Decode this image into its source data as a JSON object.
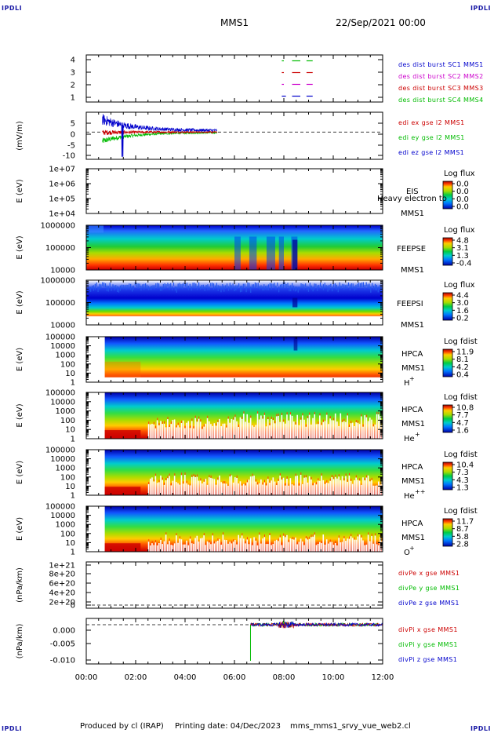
{
  "header": {
    "corner_label": "IPDLI",
    "title": "MMS1",
    "date": "22/Sep/2021 00:00"
  },
  "footer": {
    "produced_by": "Produced by cl (IRAP)",
    "printing_date": "Printing date: 04/Dec/2023",
    "filename": "mms_mms1_srvy_vue_web2.cl"
  },
  "colors": {
    "mms1": "#0000cc",
    "mms2": "#cc00cc",
    "mms3": "#cc0000",
    "mms4": "#00bb00"
  },
  "chart_data": {
    "type": "line",
    "x_ticks": [
      "00:00",
      "02:00",
      "04:00",
      "06:00",
      "08:00",
      "10:00",
      "12:00"
    ],
    "panels": [
      {
        "id": "burst",
        "type": "scatter",
        "y_ticks": [
          "4",
          "3",
          "2",
          "1"
        ],
        "ylim": [
          0.5,
          4.5
        ],
        "series": [
          {
            "name": "des dist burst SC1 MMS1",
            "color": "#0000cc",
            "y": 1,
            "segments": [
              [
                "07:55",
                "08:05"
              ],
              [
                "08:20",
                "08:40"
              ],
              [
                "08:55",
                "09:10"
              ]
            ]
          },
          {
            "name": "des dist burst SC2 MMS2",
            "color": "#cc00cc",
            "y": 2,
            "segments": [
              [
                "07:55",
                "08:00"
              ],
              [
                "08:20",
                "08:40"
              ],
              [
                "08:55",
                "09:10"
              ]
            ]
          },
          {
            "name": "des dist burst SC3 MMS3",
            "color": "#cc0000",
            "y": 3,
            "segments": [
              [
                "07:55",
                "08:00"
              ],
              [
                "08:20",
                "08:40"
              ],
              [
                "08:55",
                "09:10"
              ]
            ]
          },
          {
            "name": "des dist burst SC4 MMS4",
            "color": "#00bb00",
            "y": 4,
            "segments": [
              [
                "07:55",
                "08:00"
              ],
              [
                "08:20",
                "08:40"
              ],
              [
                "08:55",
                "09:10"
              ]
            ]
          }
        ]
      },
      {
        "id": "edi",
        "type": "line",
        "ylabel": "(mV/m)",
        "y_ticks": [
          "5",
          "0",
          "-5",
          "-10"
        ],
        "ylim": [
          -11,
          8
        ],
        "series": [
          {
            "name": "edi ex gse l2 MMS1",
            "color": "#cc0000"
          },
          {
            "name": "edi ey gse l2 MMS1",
            "color": "#00bb00"
          },
          {
            "name": "edi ez gse l2 MMS1",
            "color": "#0000cc"
          }
        ]
      },
      {
        "id": "eis",
        "type": "heatmap",
        "ylabel": "E (eV)",
        "y_ticks": [
          "1e+07",
          "1e+06",
          "1e+05",
          "1e+04"
        ],
        "instrument": "EIS",
        "spacecraft": "MMS1",
        "overlay_text": "Heavy electron to",
        "colorbar_title": "Log flux",
        "colorbar_ticks": [
          "0.0",
          "0.0",
          "0.0",
          "0.0"
        ]
      },
      {
        "id": "feepse",
        "type": "heatmap",
        "ylabel": "E (eV)",
        "y_ticks": [
          "1000000",
          "100000",
          "10000"
        ],
        "instrument": "FEEPSE",
        "spacecraft": "MMS1",
        "colorbar_title": "Log flux",
        "colorbar_ticks": [
          "4.8",
          "3.1",
          "1.3",
          "-0.4"
        ]
      },
      {
        "id": "feepsi",
        "type": "heatmap",
        "ylabel": "E (eV)",
        "y_ticks": [
          "1000000",
          "100000",
          "10000"
        ],
        "instrument": "FEEPSI",
        "spacecraft": "MMS1",
        "colorbar_title": "Log flux",
        "colorbar_ticks": [
          "4.4",
          "3.0",
          "1.6",
          "0.2"
        ]
      },
      {
        "id": "hpca_h",
        "type": "heatmap",
        "ylabel": "E (eV)",
        "y_ticks": [
          "100000",
          "10000",
          "1000",
          "100",
          "10",
          "1"
        ],
        "instrument": "HPCA",
        "spacecraft": "MMS1",
        "species": "H",
        "species_sup": "+",
        "colorbar_title": "Log fdist",
        "colorbar_ticks": [
          "11.9",
          "8.1",
          "4.2",
          "0.4"
        ]
      },
      {
        "id": "hpca_he",
        "type": "heatmap",
        "ylabel": "E (eV)",
        "y_ticks": [
          "100000",
          "10000",
          "1000",
          "100",
          "10",
          "1"
        ],
        "instrument": "HPCA",
        "spacecraft": "MMS1",
        "species": "He",
        "species_sup": "+",
        "colorbar_title": "Log fdist",
        "colorbar_ticks": [
          "10.8",
          "7.7",
          "4.7",
          "1.6"
        ]
      },
      {
        "id": "hpca_hepp",
        "type": "heatmap",
        "ylabel": "E (eV)",
        "y_ticks": [
          "100000",
          "10000",
          "1000",
          "100",
          "10",
          "1"
        ],
        "instrument": "HPCA",
        "spacecraft": "MMS1",
        "species": "He",
        "species_sup": "++",
        "colorbar_title": "Log fdist",
        "colorbar_ticks": [
          "10.4",
          "7.3",
          "4.3",
          "1.3"
        ]
      },
      {
        "id": "hpca_o",
        "type": "heatmap",
        "ylabel": "E (eV)",
        "y_ticks": [
          "100000",
          "10000",
          "1000",
          "100",
          "10",
          "1"
        ],
        "instrument": "HPCA",
        "spacecraft": "MMS1",
        "species": "O",
        "species_sup": "+",
        "colorbar_title": "Log fdist",
        "colorbar_ticks": [
          "11.7",
          "8.7",
          "5.8",
          "2.8"
        ]
      },
      {
        "id": "divpe",
        "type": "line",
        "ylabel": "(nPa/km)",
        "y_ticks": [
          "1e+21",
          "8e+20",
          "6e+20",
          "4e+20",
          "2e+20",
          "0"
        ],
        "ylim": [
          -5e+19,
          1.05e+21
        ],
        "series": [
          {
            "name": "divPe x gse MMS1",
            "color": "#cc0000"
          },
          {
            "name": "divPe y gse MMS1",
            "color": "#00bb00"
          },
          {
            "name": "divPe z gse MMS1",
            "color": "#0000cc"
          }
        ]
      },
      {
        "id": "divpi",
        "type": "line",
        "ylabel": "(nPa/km)",
        "y_ticks": [
          "0.000",
          "-0.005",
          "-0.010"
        ],
        "ylim": [
          -0.0125,
          0.002
        ],
        "series": [
          {
            "name": "divPi x gse MMS1",
            "color": "#cc0000"
          },
          {
            "name": "divPi y gse MMS1",
            "color": "#00bb00"
          },
          {
            "name": "divPi z gse MMS1",
            "color": "#0000cc"
          }
        ]
      }
    ]
  }
}
